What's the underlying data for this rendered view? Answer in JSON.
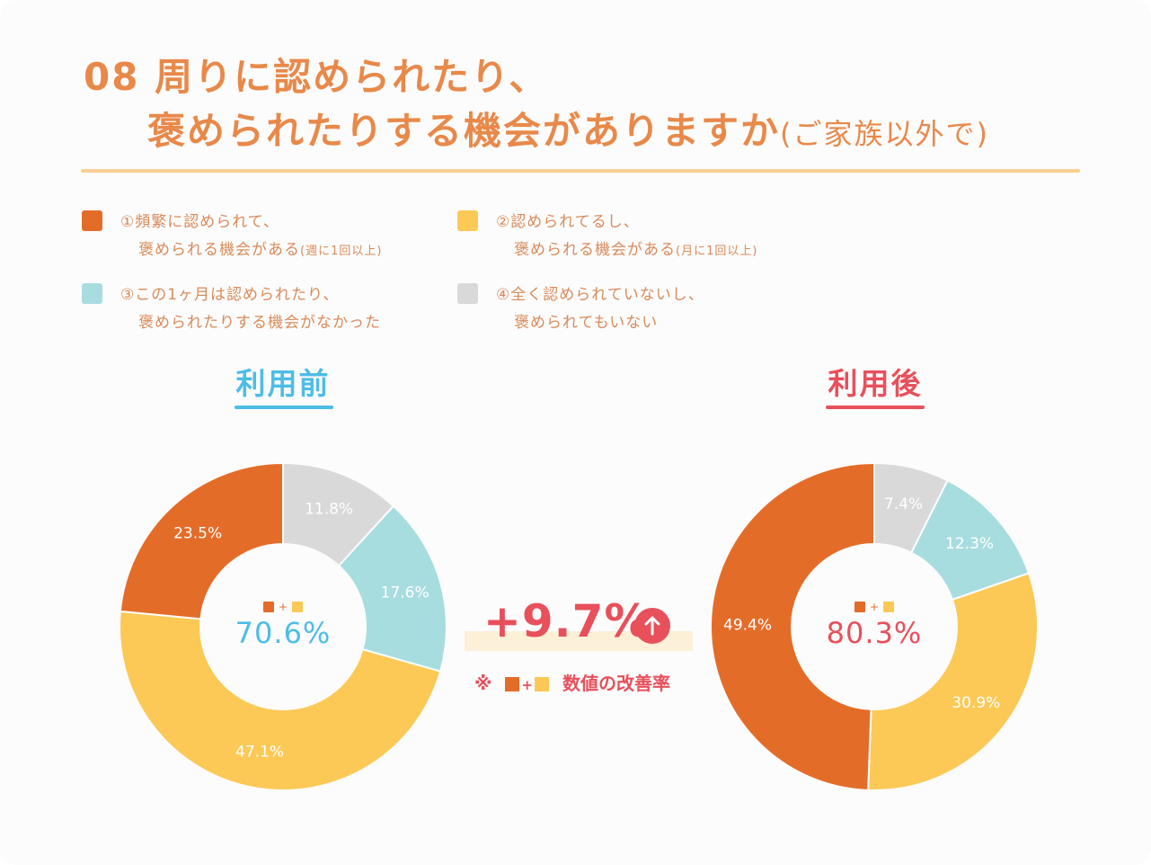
{
  "title": {
    "number": "08",
    "line1": "周りに認められたり、",
    "line2": "褒められたりする機会がありますか",
    "suffix": "(ご家族以外で)"
  },
  "legend": [
    {
      "line1": "①頻繁に認められて、",
      "line2": "褒められる機会がある",
      "note": "(週に1回以上)",
      "color": "#e46c29"
    },
    {
      "line1": "②認められてるし、",
      "line2": "褒められる機会がある",
      "note": "(月に1回以上)",
      "color": "#fcc957"
    },
    {
      "line1": "③この1ヶ月は認められたり、",
      "line2": "褒められたりする機会がなかった",
      "note": "",
      "color": "#a8dde0"
    },
    {
      "line1": "④全く認められていないし、",
      "line2": "褒められてもいない",
      "note": "",
      "color": "#d9d9d9"
    }
  ],
  "colors": {
    "accent_before": "#4dbde6",
    "accent_after": "#e8505b",
    "title": "#e8894a"
  },
  "chart_data": [
    {
      "type": "pie",
      "title": "利用前",
      "labels": [
        "①頻繁に認められて、褒められる機会がある",
        "②認められてるし、褒められる機会がある",
        "③この1ヶ月は認められたり、褒められたりする機会がなかった",
        "④全く認められていないし、褒められてもいない"
      ],
      "values": [
        23.5,
        47.1,
        17.6,
        11.8
      ],
      "value_labels": [
        "23.5%",
        "47.1%",
        "17.6%",
        "11.8%"
      ],
      "center_value": "70.6%"
    },
    {
      "type": "pie",
      "title": "利用後",
      "labels": [
        "①頻繁に認められて、褒められる機会がある",
        "②認められてるし、褒められる機会がある",
        "③この1ヶ月は認められたり、褒められたりする機会がなかった",
        "④全く認められていないし、褒められてもいない"
      ],
      "values": [
        49.4,
        30.9,
        12.3,
        7.4
      ],
      "value_labels": [
        "49.4%",
        "30.9%",
        "12.3%",
        "7.4%"
      ],
      "center_value": "80.3%"
    }
  ],
  "difference": {
    "value": "+9.7%",
    "note_prefix": "※",
    "note_text": "数値の改善率"
  }
}
